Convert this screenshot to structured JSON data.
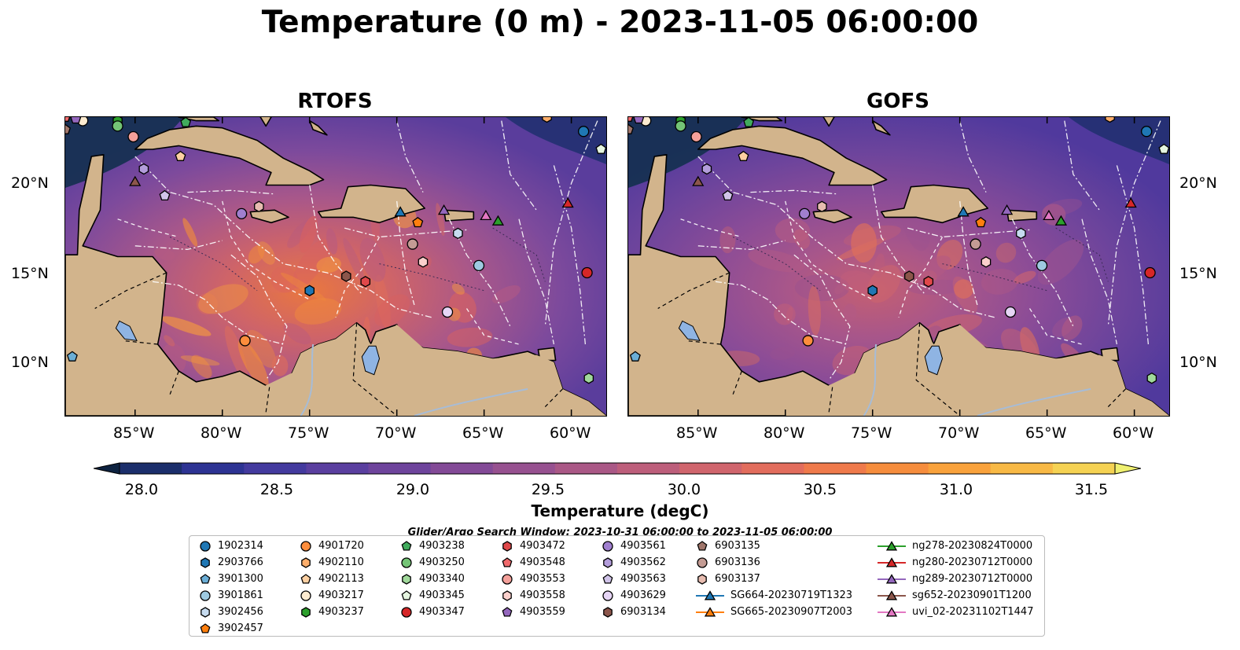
{
  "title": "Temperature (0 m) - 2023-11-05 06:00:00",
  "panels": [
    {
      "title": "RTOFS"
    },
    {
      "title": "GOFS"
    }
  ],
  "axes": {
    "lat_labels": [
      "20°N",
      "15°N",
      "10°N"
    ],
    "lon_labels": [
      "85°W",
      "80°W",
      "75°W",
      "70°W",
      "65°W",
      "60°W"
    ],
    "lon_range": [
      -89,
      -58
    ],
    "lat_range": [
      7,
      23.7
    ]
  },
  "colorbar": {
    "title": "Temperature (degC)",
    "ticks": [
      "28.0",
      "28.5",
      "29.0",
      "29.5",
      "30.0",
      "30.5",
      "31.0",
      "31.5"
    ],
    "range": [
      28.0,
      31.5
    ],
    "step": 0.25,
    "extend": "both",
    "colors": [
      "#0d2240",
      "#1b2e6b",
      "#2d3393",
      "#433a9e",
      "#5a3f9f",
      "#6e449c",
      "#834a97",
      "#975190",
      "#aa5886",
      "#bd5e7b",
      "#d0656d",
      "#e26d5d",
      "#ef7a4b",
      "#f68d3d",
      "#f9a23c",
      "#f8b945",
      "#f5d253",
      "#eff070"
    ]
  },
  "search_window": "Glider/Argo Search Window: 2023-10-31 06:00:00 to 2023-11-05 06:00:00",
  "legend": {
    "columns": [
      [
        {
          "label": "1902314",
          "marker": "circle",
          "color": "#1f77b4"
        },
        {
          "label": "2903766",
          "marker": "hexagon",
          "color": "#1f77b4"
        },
        {
          "label": "3901300",
          "marker": "pentagon",
          "color": "#6baed6"
        },
        {
          "label": "3901861",
          "marker": "circle",
          "color": "#9ecae1"
        },
        {
          "label": "3902456",
          "marker": "hexagon",
          "color": "#c6dbef"
        },
        {
          "label": "3902457",
          "marker": "pentagon",
          "color": "#ff7f0e"
        }
      ],
      [
        {
          "label": "4901720",
          "marker": "circle",
          "color": "#fd8d3c"
        },
        {
          "label": "4902110",
          "marker": "hexagon",
          "color": "#fdae6b"
        },
        {
          "label": "4902113",
          "marker": "pentagon",
          "color": "#fdd0a2"
        },
        {
          "label": "4903217",
          "marker": "circle",
          "color": "#fdebd0"
        },
        {
          "label": "4903237",
          "marker": "hexagon",
          "color": "#2ca02c"
        }
      ],
      [
        {
          "label": "4903238",
          "marker": "pentagon",
          "color": "#41ab5d"
        },
        {
          "label": "4903250",
          "marker": "circle",
          "color": "#74c476"
        },
        {
          "label": "4903340",
          "marker": "hexagon",
          "color": "#a1d99b"
        },
        {
          "label": "4903345",
          "marker": "pentagon",
          "color": "#e5f5e0"
        },
        {
          "label": "4903347",
          "marker": "circle",
          "color": "#d62728"
        }
      ],
      [
        {
          "label": "4903472",
          "marker": "hexagon",
          "color": "#e0484a"
        },
        {
          "label": "4903548",
          "marker": "pentagon",
          "color": "#f06a6c"
        },
        {
          "label": "4903553",
          "marker": "circle",
          "color": "#f4a09a"
        },
        {
          "label": "4903558",
          "marker": "hexagon",
          "color": "#fbd0cc"
        },
        {
          "label": "4903559",
          "marker": "pentagon",
          "color": "#9467bd"
        }
      ],
      [
        {
          "label": "4903561",
          "marker": "circle",
          "color": "#a07fcf"
        },
        {
          "label": "4903562",
          "marker": "hexagon",
          "color": "#b39ddb"
        },
        {
          "label": "4903563",
          "marker": "pentagon",
          "color": "#d1c4e9"
        },
        {
          "label": "4903629",
          "marker": "circle",
          "color": "#e6d5f5"
        },
        {
          "label": "6903134",
          "marker": "hexagon",
          "color": "#8c564b"
        }
      ],
      [
        {
          "label": "6903135",
          "marker": "pentagon",
          "color": "#a0766b"
        },
        {
          "label": "6903136",
          "marker": "circle",
          "color": "#c49c94"
        },
        {
          "label": "6903137",
          "marker": "hexagon",
          "color": "#e7bcb0"
        },
        {
          "label": "SG664-20230719T1323",
          "marker": "triangle-line",
          "color": "#1f77b4"
        },
        {
          "label": "SG665-20230907T2003",
          "marker": "triangle-line",
          "color": "#ff7f0e"
        }
      ],
      [
        {
          "label": "ng278-20230824T0000",
          "marker": "triangle-line",
          "color": "#2ca02c"
        },
        {
          "label": "ng280-20230712T0000",
          "marker": "triangle-line",
          "color": "#d62728"
        },
        {
          "label": "ng289-20230712T0000",
          "marker": "triangle-line",
          "color": "#9467bd"
        },
        {
          "label": "sg652-20230901T1200",
          "marker": "triangle-line",
          "color": "#8c564b"
        },
        {
          "label": "uvi_02-20231102T1447",
          "marker": "triangle-line",
          "color": "#e377c2"
        }
      ]
    ]
  },
  "observations": [
    {
      "label": "1902314",
      "lon": -59.3,
      "lat": 22.9
    },
    {
      "label": "2903766",
      "lon": -75.0,
      "lat": 14.0
    },
    {
      "label": "3901300",
      "lon": -88.6,
      "lat": 10.3
    },
    {
      "label": "3901861",
      "lon": -65.3,
      "lat": 15.4
    },
    {
      "label": "3902456",
      "lon": -66.5,
      "lat": 17.2
    },
    {
      "label": "3902457",
      "lon": -68.8,
      "lat": 17.8
    },
    {
      "label": "4901720",
      "lon": -78.7,
      "lat": 11.2
    },
    {
      "label": "4902110",
      "lon": -61.4,
      "lat": 23.7
    },
    {
      "label": "4902113",
      "lon": -82.4,
      "lat": 21.5
    },
    {
      "label": "4903217",
      "lon": -88.0,
      "lat": 23.5
    },
    {
      "label": "4903237",
      "lon": -86.0,
      "lat": 23.5
    },
    {
      "label": "4903238",
      "lon": -82.1,
      "lat": 23.4
    },
    {
      "label": "4903250",
      "lon": -86.0,
      "lat": 23.2
    },
    {
      "label": "4903340",
      "lon": -59.0,
      "lat": 9.1
    },
    {
      "label": "4903345",
      "lon": -58.3,
      "lat": 21.9
    },
    {
      "label": "4903347",
      "lon": -59.1,
      "lat": 15.0
    },
    {
      "label": "4903472",
      "lon": -71.8,
      "lat": 14.5
    },
    {
      "label": "4903548",
      "lon": -89.0,
      "lat": 23.7
    },
    {
      "label": "4903553",
      "lon": -85.1,
      "lat": 22.6
    },
    {
      "label": "4903558",
      "lon": -68.5,
      "lat": 15.6
    },
    {
      "label": "4903559",
      "lon": -88.4,
      "lat": 23.6
    },
    {
      "label": "4903561",
      "lon": -78.9,
      "lat": 18.3
    },
    {
      "label": "4903562",
      "lon": -84.5,
      "lat": 20.8
    },
    {
      "label": "4903563",
      "lon": -83.3,
      "lat": 19.3
    },
    {
      "label": "4903629",
      "lon": -67.1,
      "lat": 12.8
    },
    {
      "label": "6903134",
      "lon": -72.9,
      "lat": 14.8
    },
    {
      "label": "6903135",
      "lon": -89.0,
      "lat": 23.0
    },
    {
      "label": "6903136",
      "lon": -69.1,
      "lat": 16.6
    },
    {
      "label": "6903137",
      "lon": -77.9,
      "lat": 18.7
    },
    {
      "label": "SG664-20230719T1323",
      "lon": -69.8,
      "lat": 18.4
    },
    {
      "label": "SG665-20230907T2003",
      "lon": -86.0,
      "lat": 24.0
    },
    {
      "label": "ng278-20230824T0000",
      "lon": -64.2,
      "lat": 17.9
    },
    {
      "label": "ng280-20230712T0000",
      "lon": -60.2,
      "lat": 18.9
    },
    {
      "label": "ng289-20230712T0000",
      "lon": -67.3,
      "lat": 18.5
    },
    {
      "label": "sg652-20230901T1200",
      "lon": -85.0,
      "lat": 20.1
    },
    {
      "label": "uvi_02-20231102T1447",
      "lon": -64.9,
      "lat": 18.2
    }
  ]
}
